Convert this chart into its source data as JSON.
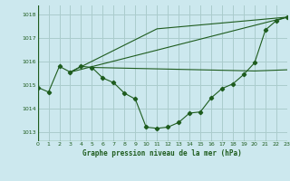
{
  "title": "Graphe pression niveau de la mer (hPa)",
  "bg_color": "#cce8ee",
  "grid_color": "#aacccc",
  "line_color": "#1e5c1e",
  "xlim": [
    0,
    23
  ],
  "ylim": [
    1012.6,
    1018.4
  ],
  "yticks": [
    1013,
    1014,
    1015,
    1016,
    1017,
    1018
  ],
  "xticks": [
    0,
    1,
    2,
    3,
    4,
    5,
    6,
    7,
    8,
    9,
    10,
    11,
    12,
    13,
    14,
    15,
    16,
    17,
    18,
    19,
    20,
    21,
    22,
    23
  ],
  "series_main": [
    [
      0,
      1014.9
    ],
    [
      1,
      1014.7
    ],
    [
      2,
      1015.8
    ],
    [
      3,
      1015.55
    ],
    [
      4,
      1015.8
    ],
    [
      5,
      1015.75
    ],
    [
      6,
      1015.3
    ],
    [
      7,
      1015.1
    ],
    [
      8,
      1014.65
    ],
    [
      9,
      1014.4
    ],
    [
      10,
      1013.2
    ],
    [
      11,
      1013.15
    ],
    [
      12,
      1013.2
    ],
    [
      13,
      1013.4
    ],
    [
      14,
      1013.8
    ],
    [
      15,
      1013.85
    ],
    [
      16,
      1014.45
    ],
    [
      17,
      1014.85
    ],
    [
      18,
      1015.05
    ],
    [
      19,
      1015.45
    ],
    [
      20,
      1015.95
    ],
    [
      21,
      1017.35
    ],
    [
      22,
      1017.75
    ],
    [
      23,
      1017.9
    ]
  ],
  "series_diag1": [
    [
      3,
      1015.55
    ],
    [
      23,
      1017.9
    ]
  ],
  "series_diag2": [
    [
      3,
      1015.55
    ],
    [
      11,
      1017.4
    ],
    [
      23,
      1017.9
    ]
  ],
  "series_flat": [
    [
      5,
      1015.75
    ],
    [
      20,
      1015.6
    ],
    [
      23,
      1015.65
    ]
  ]
}
